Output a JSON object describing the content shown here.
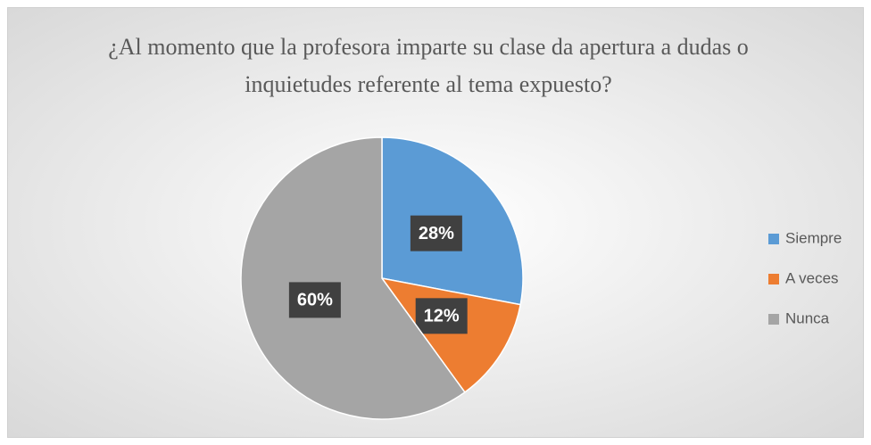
{
  "chart_data": {
    "type": "pie",
    "title": "¿Al momento que la profesora imparte su clase da apertura a dudas o inquietudes referente al tema expuesto?",
    "categories": [
      "Siempre",
      "A veces",
      "Nunca"
    ],
    "values": [
      28,
      12,
      60
    ],
    "value_labels": [
      "28%",
      "12%",
      "60%"
    ],
    "colors": [
      "#5b9bd5",
      "#ed7d31",
      "#a5a5a5"
    ],
    "legend": "right"
  }
}
